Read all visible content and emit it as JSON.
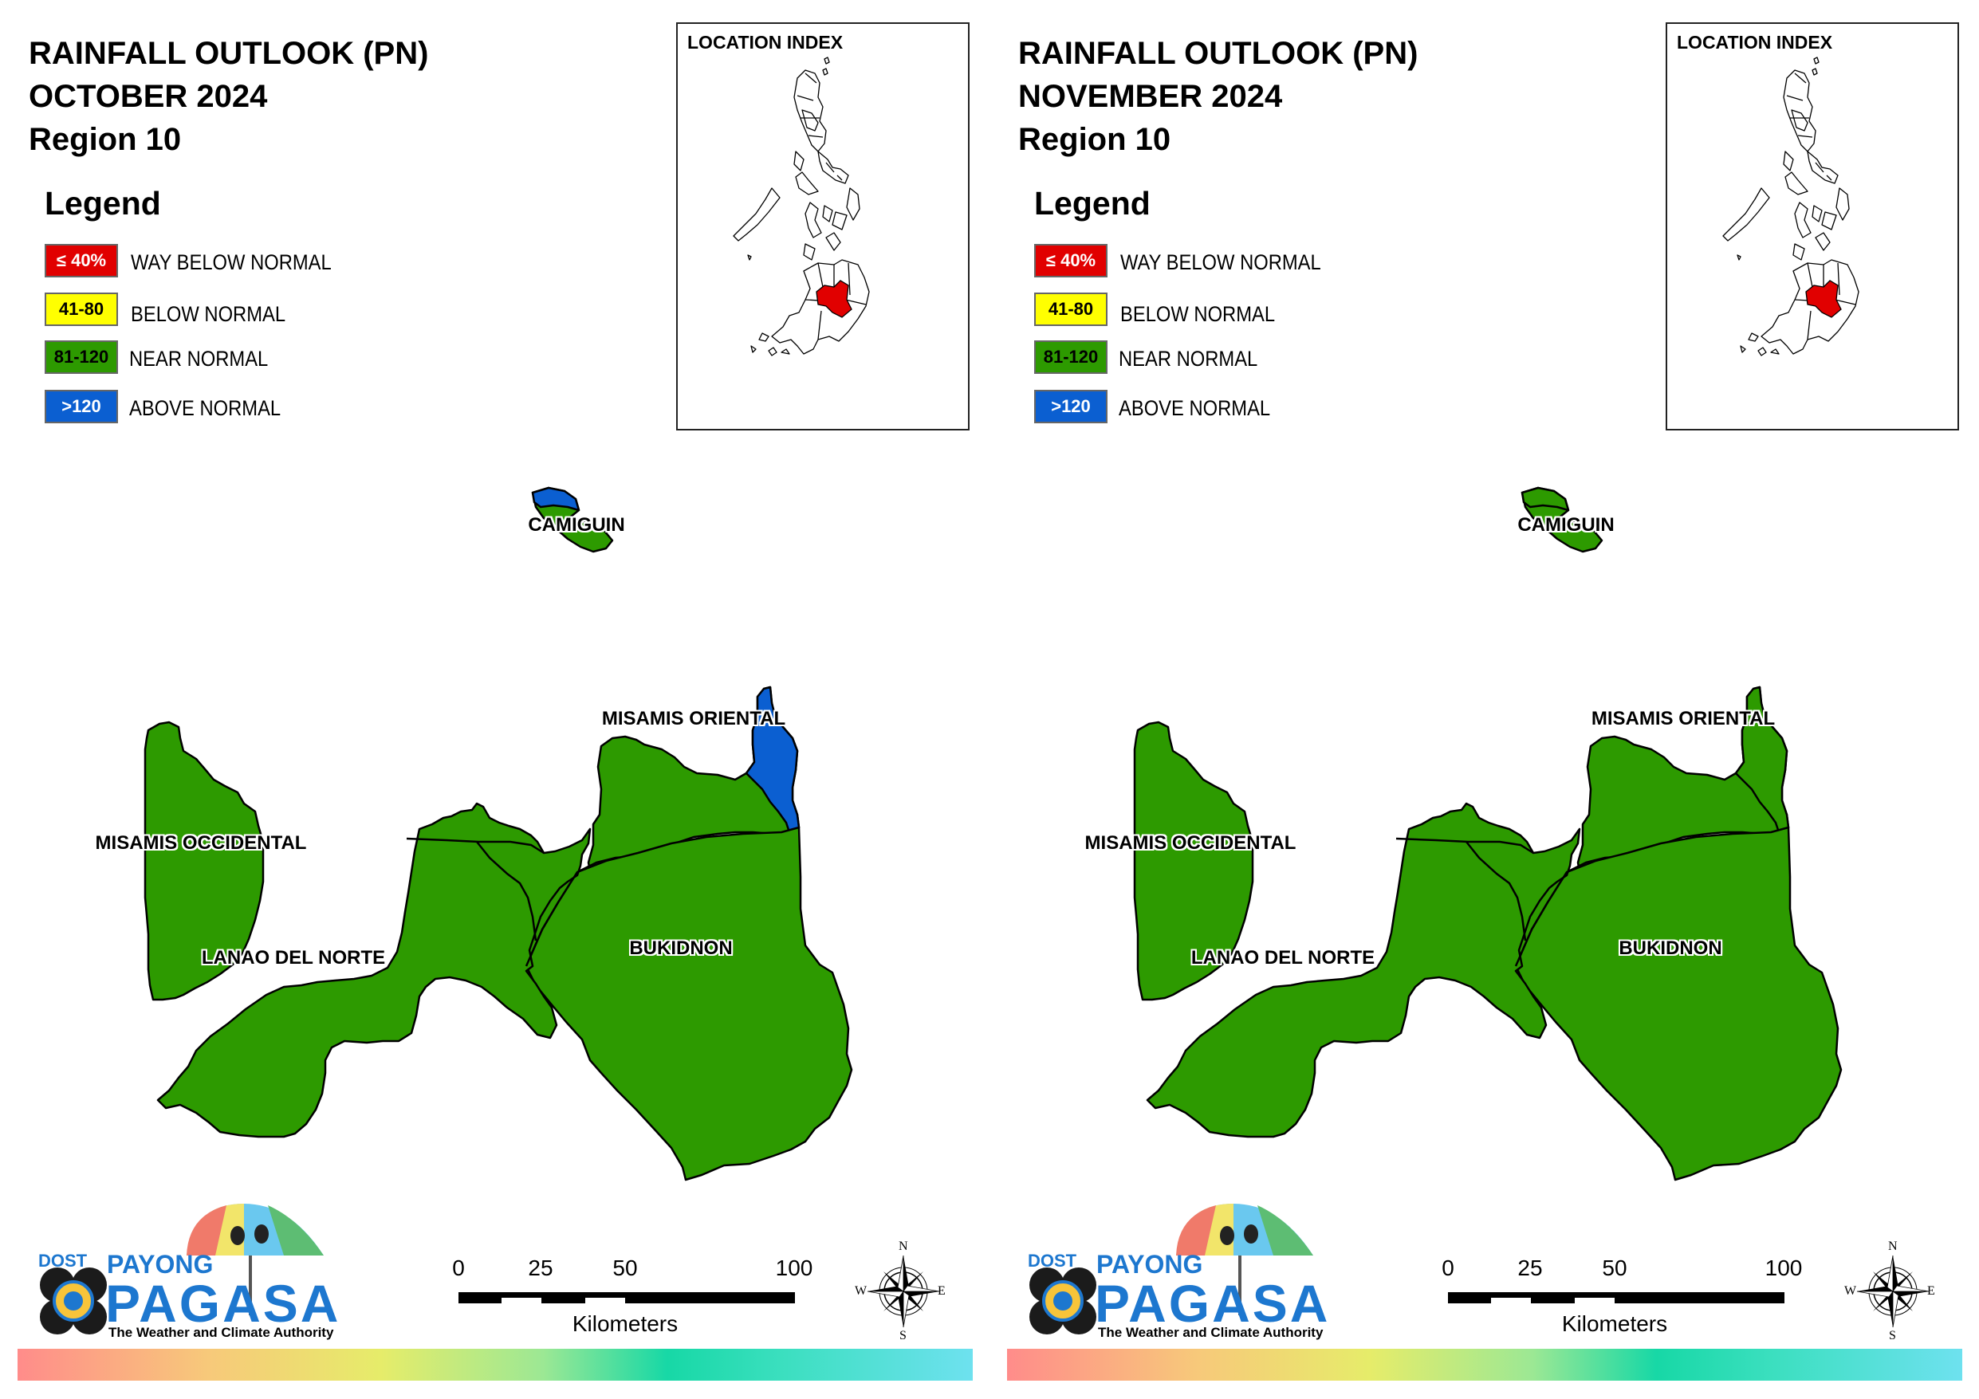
{
  "panels": [
    {
      "title_lines": [
        "RAINFALL OUTLOOK (PN)",
        "OCTOBER 2024",
        "Region 10"
      ],
      "camiguin_cap_color": "#0b5fd1",
      "misamis_oriental_tip_color": "#0b5fd1"
    },
    {
      "title_lines": [
        "RAINFALL OUTLOOK (PN)",
        "NOVEMBER 2024",
        "Region 10"
      ],
      "camiguin_cap_color": "#2d9a00",
      "misamis_oriental_tip_color": "#2d9a00"
    }
  ],
  "legend": {
    "heading": "Legend",
    "items": [
      {
        "code": "≤ 40%",
        "label": "WAY BELOW NORMAL",
        "color": "#e10000",
        "text_color": "#ffffff"
      },
      {
        "code": "41-80",
        "label": "BELOW NORMAL",
        "color": "#ffff00",
        "text_color": "#000000"
      },
      {
        "code": "81-120",
        "label": "NEAR NORMAL",
        "color": "#2d9a00",
        "text_color": "#000000"
      },
      {
        "code": ">120",
        "label": "ABOVE NORMAL",
        "color": "#0b5fd1",
        "text_color": "#ffffff"
      }
    ]
  },
  "location_index": {
    "title": "LOCATION INDEX",
    "highlight_color": "#e10000"
  },
  "map": {
    "base_color": "#2d9a00",
    "provinces": {
      "camiguin": "CAMIGUIN",
      "misamis_oriental": "MISAMIS ORIENTAL",
      "misamis_occidental": "MISAMIS OCCIDENTAL",
      "lanao_del_norte": "LANAO DEL NORTE",
      "bukidnon": "BUKIDNON"
    }
  },
  "branding": {
    "dost": "DOST",
    "payong": "PAYONG",
    "pagasa": "PAGASA",
    "tagline": "The Weather and Climate Authority"
  },
  "scale": {
    "ticks": [
      "0",
      "25",
      "50",
      "100"
    ],
    "unit": "Kilometers"
  },
  "compass": {
    "n": "N",
    "s": "S",
    "e": "E",
    "w": "W"
  }
}
